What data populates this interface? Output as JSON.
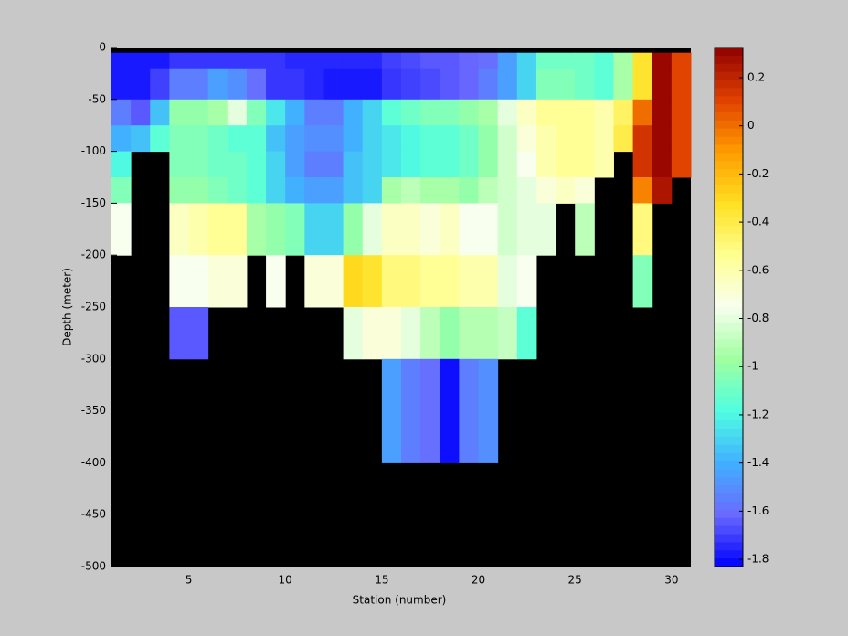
{
  "chart_data": {
    "type": "heatmap",
    "xlabel": "Station (number)",
    "ylabel": "Depth (meter)",
    "x": [
      1,
      2,
      3,
      4,
      5,
      6,
      7,
      8,
      9,
      10,
      11,
      12,
      13,
      14,
      15,
      16,
      17,
      18,
      19,
      20,
      21,
      22,
      23,
      24,
      25,
      26,
      27,
      28,
      29,
      30,
      31
    ],
    "y": [
      0,
      -5,
      -20,
      -50,
      -75,
      -100,
      -125,
      -150,
      -200,
      -250,
      -300,
      -400,
      -500
    ],
    "xlim": [
      1,
      31
    ],
    "ylim": [
      -500,
      0
    ],
    "xticks": [
      5,
      10,
      15,
      20,
      25,
      30
    ],
    "yticks": [
      0,
      -50,
      -100,
      -150,
      -200,
      -250,
      -300,
      -350,
      -400,
      -450,
      -500
    ],
    "clim": [
      -1.83,
      0.325
    ],
    "cticks": [
      0.2,
      0,
      -0.2,
      -0.4,
      -0.6,
      -0.8,
      -1,
      -1.2,
      -1.4,
      -1.6,
      -1.8
    ],
    "colormap": [
      "#0000ff",
      "#6a6aff",
      "#40b0ff",
      "#50ffe0",
      "#a0ffa0",
      "#f8fff0",
      "#ffff90",
      "#ffe020",
      "#ff9a00",
      "#e04000",
      "#900000"
    ],
    "missing_color": "#000000",
    "z": [
      [
        null,
        null,
        null,
        null,
        null,
        null,
        null,
        null,
        null,
        null,
        null,
        null,
        null,
        null,
        null,
        null,
        null,
        null,
        null,
        null,
        null,
        null,
        null,
        null,
        null,
        null,
        null,
        null,
        null,
        null
      ],
      [
        -1.78,
        -1.78,
        -1.78,
        -1.72,
        -1.72,
        -1.72,
        -1.72,
        -1.72,
        -1.72,
        -1.75,
        -1.75,
        -1.75,
        -1.75,
        -1.75,
        -1.7,
        -1.68,
        -1.65,
        -1.65,
        -1.62,
        -1.6,
        -1.45,
        -1.3,
        -1.1,
        -1.1,
        -1.1,
        -1.15,
        -0.95,
        -0.35,
        0.3,
        0.1
      ],
      [
        -1.78,
        -1.78,
        -1.7,
        -1.55,
        -1.55,
        -1.45,
        -1.5,
        -1.6,
        -1.72,
        -1.72,
        -1.75,
        -1.78,
        -1.78,
        -1.78,
        -1.72,
        -1.7,
        -1.68,
        -1.65,
        -1.62,
        -1.55,
        -1.45,
        -1.3,
        -1.05,
        -1.05,
        -1.1,
        -1.15,
        -0.95,
        -0.35,
        0.3,
        0.1
      ],
      [
        -1.55,
        -1.65,
        -1.35,
        -1.0,
        -1.0,
        -0.95,
        -0.8,
        -1.05,
        -1.25,
        -1.4,
        -1.55,
        -1.55,
        -1.4,
        -1.3,
        -1.15,
        -1.1,
        -1.05,
        -1.05,
        -1.0,
        -0.95,
        -0.8,
        -0.65,
        -0.55,
        -0.55,
        -0.55,
        -0.6,
        -0.45,
        0.0,
        0.3,
        0.1
      ],
      [
        -1.4,
        -1.35,
        -1.15,
        -1.05,
        -1.05,
        -1.1,
        -1.15,
        -1.15,
        -1.35,
        -1.45,
        -1.5,
        -1.5,
        -1.4,
        -1.3,
        -1.25,
        -1.2,
        -1.15,
        -1.15,
        -1.1,
        -1.0,
        -0.85,
        -0.7,
        -0.6,
        -0.55,
        -0.55,
        -0.6,
        -0.4,
        0.15,
        0.3,
        0.1
      ],
      [
        -1.2,
        null,
        null,
        -1.05,
        -1.05,
        -1.1,
        -1.1,
        -1.15,
        -1.3,
        -1.45,
        -1.55,
        -1.55,
        -1.35,
        -1.3,
        -1.25,
        -1.2,
        -1.15,
        -1.15,
        -1.1,
        -1.0,
        -0.85,
        -0.75,
        -0.6,
        -0.55,
        -0.55,
        -0.6,
        null,
        0.15,
        0.3,
        0.1
      ],
      [
        -1.05,
        null,
        null,
        -1.0,
        -1.0,
        -1.05,
        -1.1,
        -1.15,
        -1.3,
        -1.4,
        -1.45,
        -1.45,
        -1.35,
        -1.3,
        -0.95,
        -0.9,
        -0.95,
        -0.95,
        -1.0,
        -0.9,
        -0.85,
        -0.8,
        -0.7,
        -0.65,
        -0.7,
        null,
        null,
        -0.05,
        0.25,
        null
      ],
      [
        -0.75,
        null,
        null,
        -0.65,
        -0.6,
        -0.55,
        -0.55,
        -0.95,
        -1.0,
        -1.05,
        -1.3,
        -1.3,
        -1.0,
        -0.8,
        -0.65,
        -0.65,
        -0.7,
        -0.65,
        -0.75,
        -0.75,
        -0.85,
        -0.8,
        -0.8,
        null,
        -0.9,
        null,
        null,
        -0.5,
        null,
        null
      ],
      [
        null,
        null,
        null,
        -0.75,
        -0.75,
        -0.7,
        -0.7,
        null,
        -0.75,
        null,
        -0.7,
        -0.7,
        -0.3,
        -0.35,
        -0.5,
        -0.5,
        -0.55,
        -0.55,
        -0.6,
        -0.6,
        -0.8,
        -0.75,
        null,
        null,
        null,
        null,
        null,
        -1.05,
        null,
        null
      ],
      [
        null,
        null,
        null,
        -1.65,
        -1.65,
        null,
        null,
        null,
        null,
        null,
        null,
        null,
        -0.8,
        -0.7,
        -0.7,
        -0.8,
        -0.9,
        -1.0,
        -0.92,
        -0.92,
        -0.88,
        -1.15,
        null,
        null,
        null,
        null,
        null,
        null,
        null,
        null
      ],
      [
        null,
        null,
        null,
        null,
        null,
        null,
        null,
        null,
        null,
        null,
        null,
        null,
        null,
        null,
        -1.45,
        -1.55,
        -1.6,
        -1.8,
        -1.55,
        -1.5,
        null,
        null,
        null,
        null,
        null,
        null,
        null,
        null,
        null,
        null
      ],
      [
        null,
        null,
        null,
        null,
        null,
        null,
        null,
        null,
        null,
        null,
        null,
        null,
        null,
        null,
        null,
        null,
        null,
        null,
        null,
        null,
        null,
        null,
        null,
        null,
        null,
        null,
        null,
        null,
        null,
        null
      ]
    ]
  }
}
